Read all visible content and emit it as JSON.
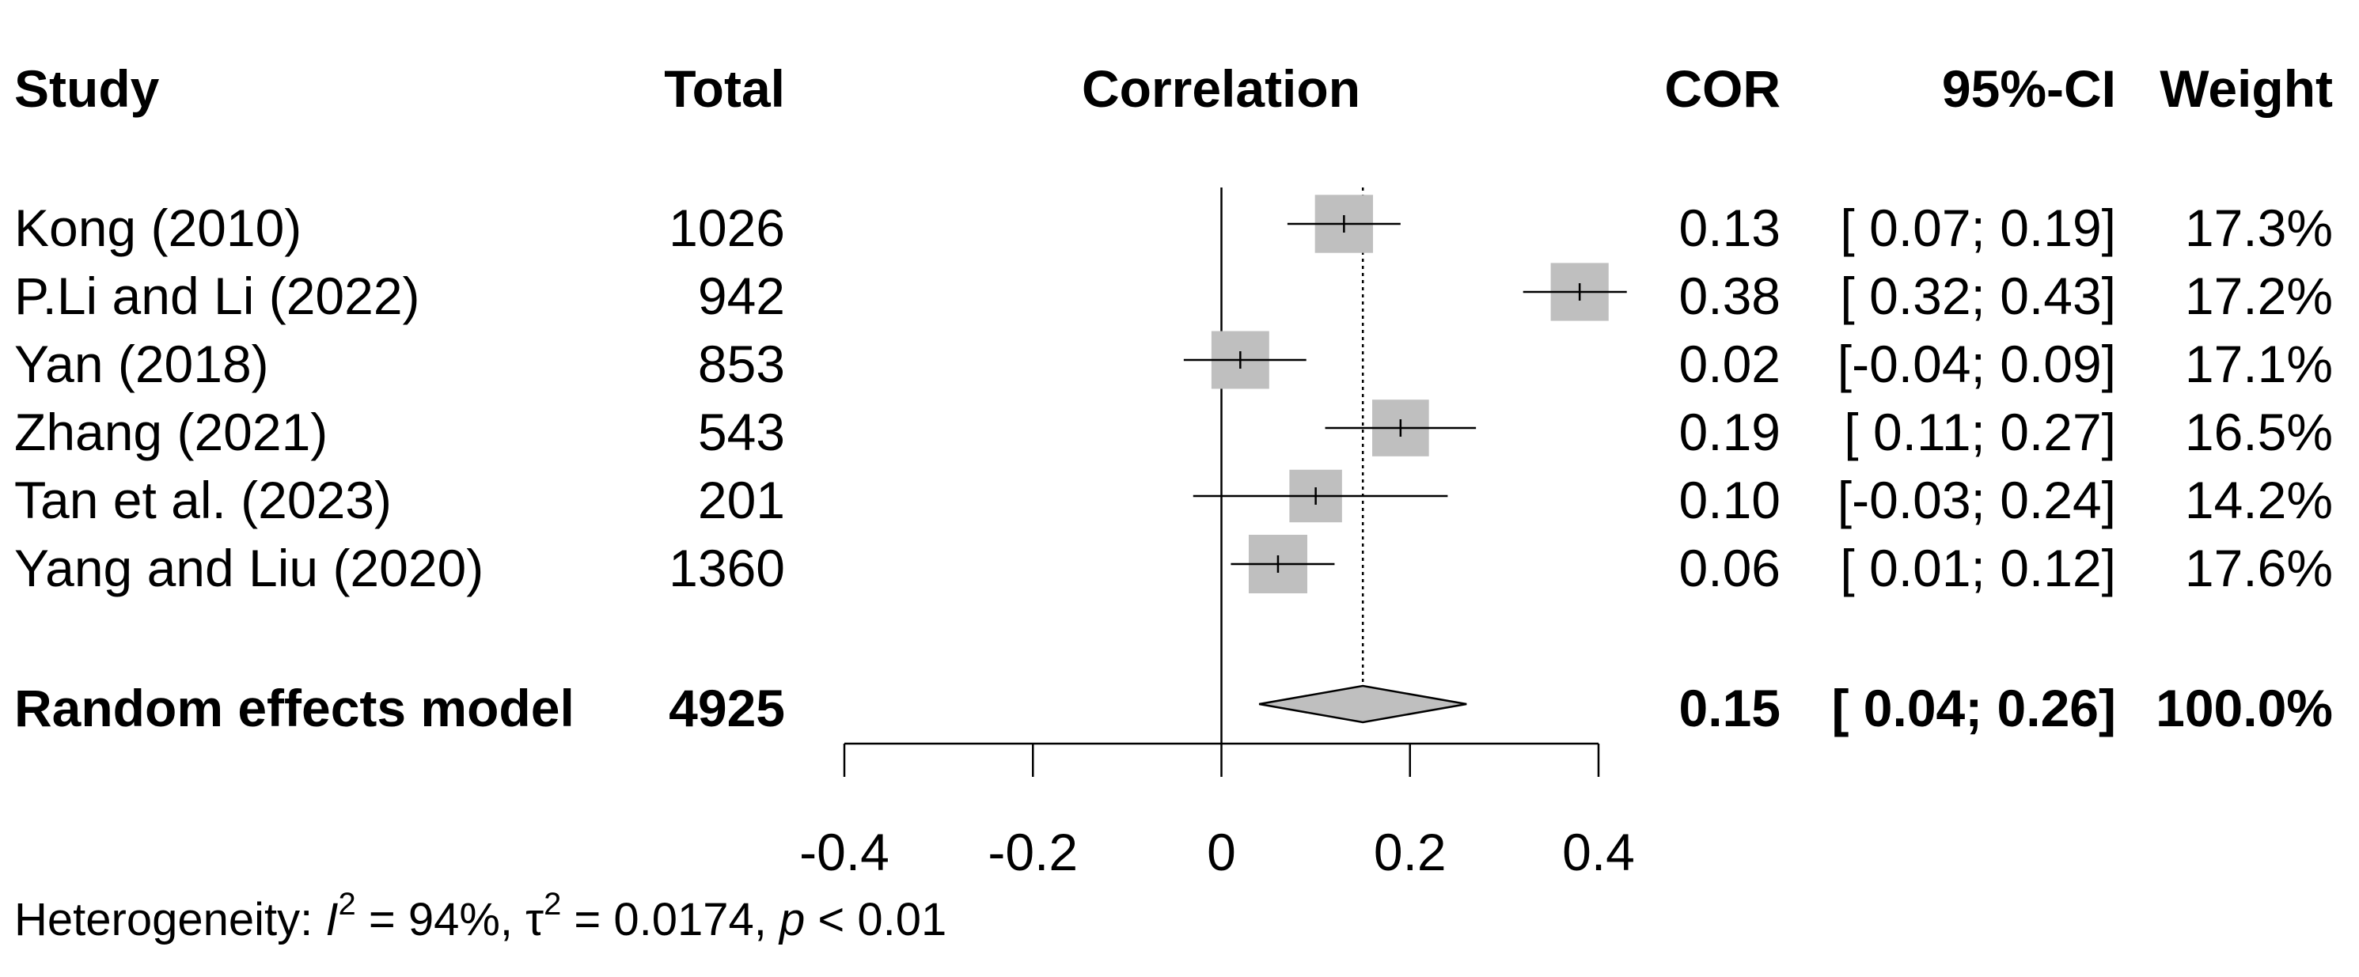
{
  "chart_data": {
    "type": "forest",
    "columns": {
      "study": "Study",
      "total": "Total",
      "plot": "Correlation",
      "cor": "COR",
      "ci": "95%-CI",
      "weight": "Weight"
    },
    "studies": [
      {
        "study": "Kong (2010)",
        "total": "1026",
        "cor": 0.13,
        "lower": 0.07,
        "upper": 0.19,
        "cor_text": "0.13",
        "ci_text": "[ 0.07; 0.19]",
        "weight": 17.3,
        "weight_text": "17.3%"
      },
      {
        "study": "P.Li and Li (2022)",
        "total": "942",
        "cor": 0.38,
        "lower": 0.32,
        "upper": 0.43,
        "cor_text": "0.38",
        "ci_text": "[ 0.32; 0.43]",
        "weight": 17.2,
        "weight_text": "17.2%"
      },
      {
        "study": "Yan (2018)",
        "total": "853",
        "cor": 0.02,
        "lower": -0.04,
        "upper": 0.09,
        "cor_text": "0.02",
        "ci_text": "[-0.04; 0.09]",
        "weight": 17.1,
        "weight_text": "17.1%"
      },
      {
        "study": "Zhang (2021)",
        "total": "543",
        "cor": 0.19,
        "lower": 0.11,
        "upper": 0.27,
        "cor_text": "0.19",
        "ci_text": "[ 0.11; 0.27]",
        "weight": 16.5,
        "weight_text": "16.5%"
      },
      {
        "study": "Tan et al. (2023)",
        "total": "201",
        "cor": 0.1,
        "lower": -0.03,
        "upper": 0.24,
        "cor_text": "0.10",
        "ci_text": "[-0.03; 0.24]",
        "weight": 14.2,
        "weight_text": "14.2%"
      },
      {
        "study": "Yang and Liu (2020)",
        "total": "1360",
        "cor": 0.06,
        "lower": 0.01,
        "upper": 0.12,
        "cor_text": "0.06",
        "ci_text": "[ 0.01; 0.12]",
        "weight": 17.6,
        "weight_text": "17.6%"
      }
    ],
    "pooled": {
      "label": "Random effects model",
      "total": "4925",
      "cor": 0.15,
      "lower": 0.04,
      "upper": 0.26,
      "cor_text": "0.15",
      "ci_text": "[ 0.04; 0.26]",
      "weight_text": "100.0%"
    },
    "xlim": [
      -0.4,
      0.4
    ],
    "ticks": [
      -0.4,
      -0.2,
      0,
      0.2,
      0.4
    ],
    "tick_labels": [
      "-0.4",
      "-0.2",
      "0",
      "0.2",
      "0.4"
    ],
    "reference_line": 0,
    "heterogeneity": {
      "prefix": "Heterogeneity: ",
      "i2_symbol": "I",
      "i2_value": " = 94%, ",
      "tau_symbol": "τ",
      "tau_value": " = 0.0174, ",
      "p_symbol": "p",
      "p_value": " < 0.01",
      "sup": "2"
    },
    "colors": {
      "square": "#bfbfbf",
      "diamond": "#bfbfbf",
      "line": "#000000"
    }
  }
}
